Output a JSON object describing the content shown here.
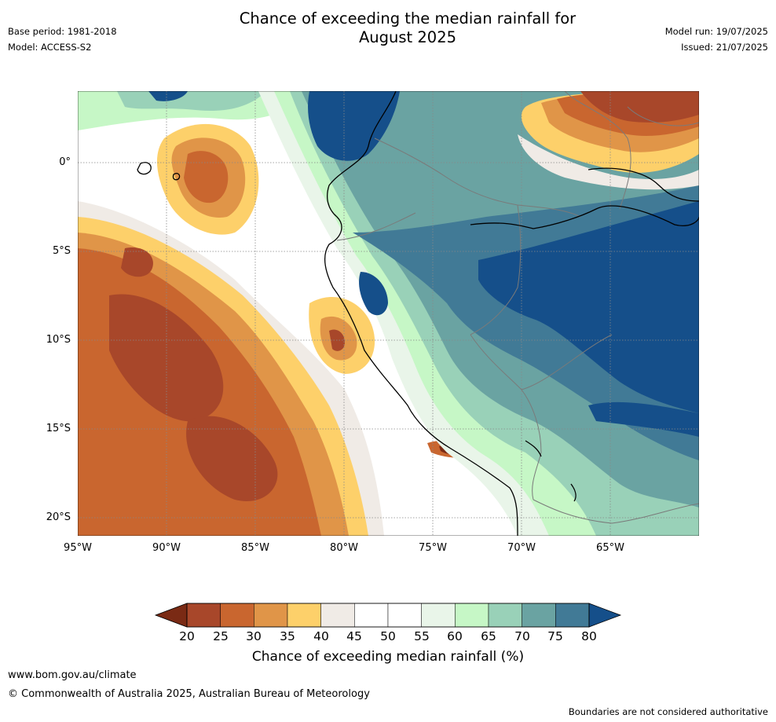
{
  "header": {
    "title_line1": "Chance of exceeding the median rainfall for",
    "title_line2": "August 2025",
    "base_period": "Base period: 1981-2018",
    "model": "Model: ACCESS-S2",
    "model_run": "Model run: 19/07/2025",
    "issued": "Issued: 21/07/2025"
  },
  "map": {
    "lat_labels": [
      "0°",
      "5°S",
      "10°S",
      "15°S",
      "20°S"
    ],
    "lon_labels": [
      "95°W",
      "90°W",
      "85°W",
      "80°W",
      "75°W",
      "70°W",
      "65°W"
    ]
  },
  "colorbar": {
    "ticks": [
      "20",
      "25",
      "30",
      "35",
      "40",
      "45",
      "50",
      "55",
      "60",
      "65",
      "70",
      "75",
      "80"
    ],
    "colors": [
      "#7a2a14",
      "#a8472a",
      "#c9662f",
      "#e09548",
      "#fdd06a",
      "#f0ebe6",
      "#ffffff",
      "#ffffff",
      "#e9f5e9",
      "#c6f7c6",
      "#99d1b8",
      "#6aa3a2",
      "#417a96",
      "#154f8a"
    ],
    "title": "Chance of exceeding median rainfall (%)"
  },
  "footer": {
    "url": "www.bom.gov.au/climate",
    "copyright": "© Commonwealth of Australia 2025, Australian Bureau of Meteorology",
    "disclaimer": "Boundaries are not considered authoritative"
  }
}
